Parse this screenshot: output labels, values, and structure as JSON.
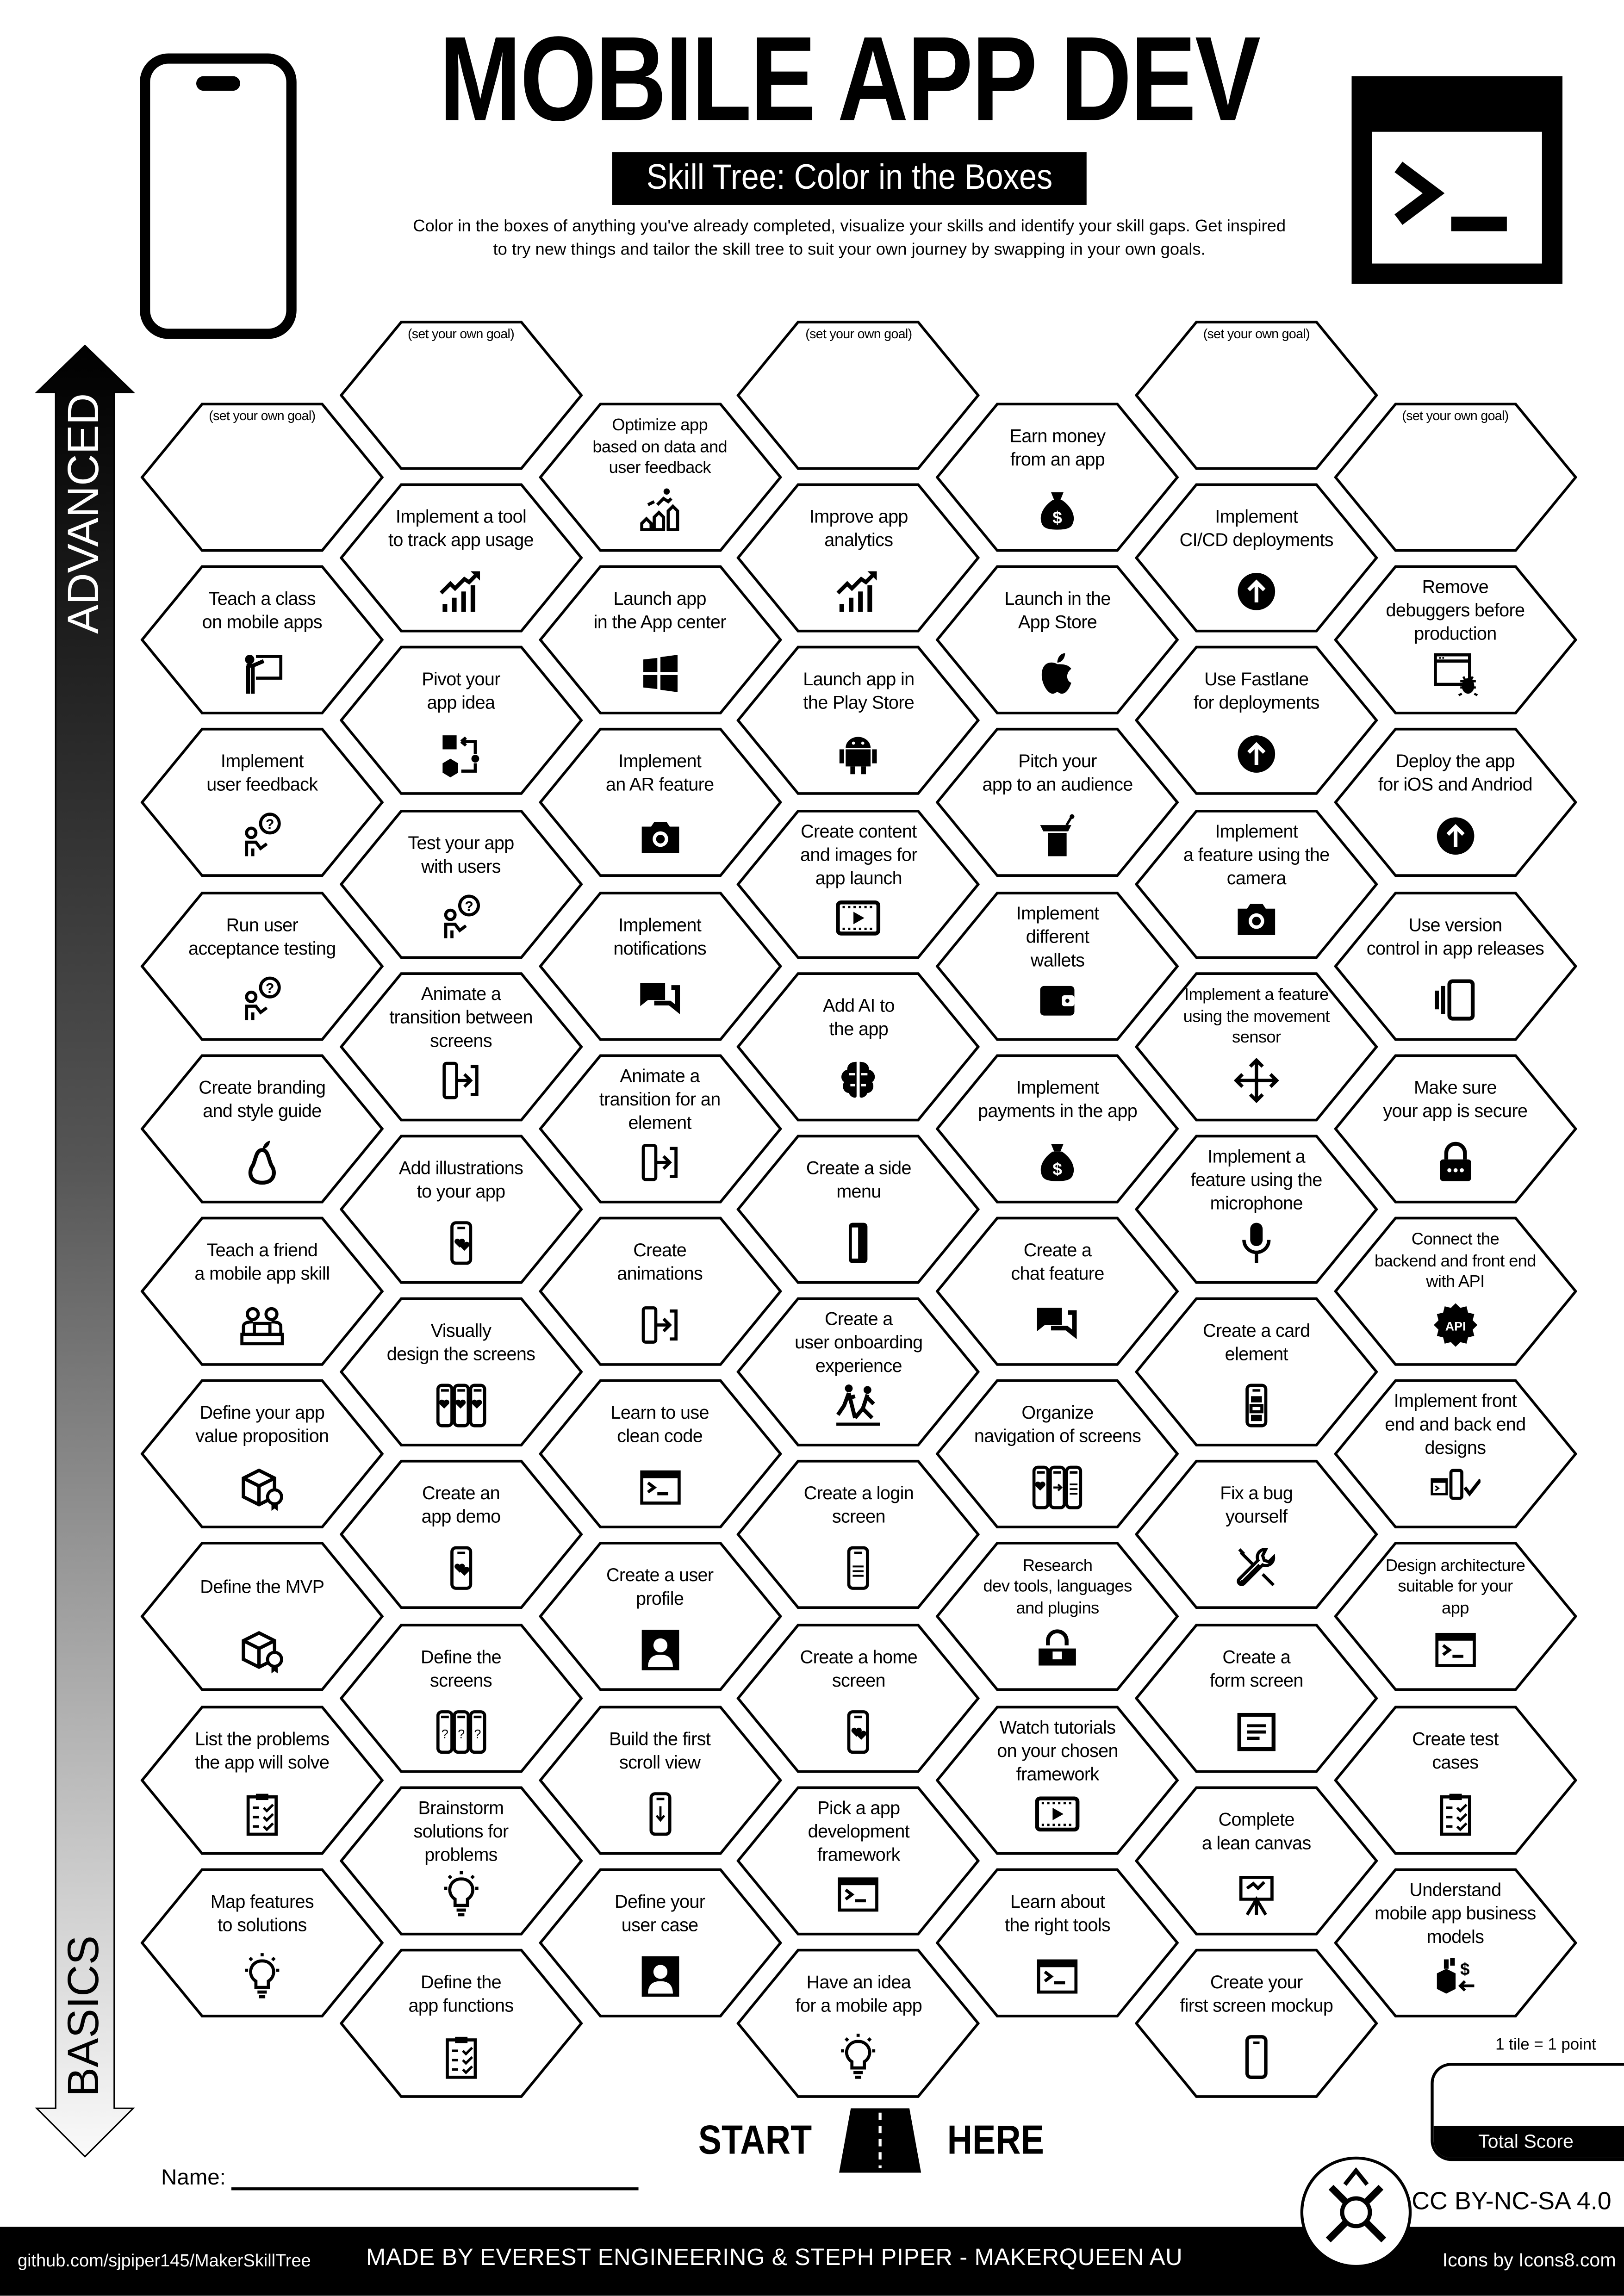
{
  "header": {
    "title": "MOBILE APP DEV",
    "subtitle": "Skill Tree: Color in the Boxes",
    "description": "Color in the boxes of anything you've already completed, visualize your skills and identify your skill gaps.  Get inspired\nto try new things and tailor the skill tree to suit your own journey by swapping in your own goals.",
    "left_icon": "smartphone-icon",
    "right_icon": "terminal-icon"
  },
  "axis": {
    "top_label": "ADVANCED",
    "bottom_label": "BASICS"
  },
  "columns": [
    {
      "hexes": [
        {
          "label": "(set your own goal)",
          "icon": null
        },
        {
          "label": "Teach a class\non mobile apps",
          "icon": "teacher"
        },
        {
          "label": "Implement\nuser feedback",
          "icon": "feedback"
        },
        {
          "label": "Run user\nacceptance testing",
          "icon": "feedback"
        },
        {
          "label": "Create branding\nand style guide",
          "icon": "pear"
        },
        {
          "label": "Teach a friend\na mobile app skill",
          "icon": "team"
        },
        {
          "label": "Define your app\nvalue proposition",
          "icon": "box-badge"
        },
        {
          "label": "Define the MVP",
          "icon": "box-badge"
        },
        {
          "label": "List the problems\nthe app will solve",
          "icon": "clipboard"
        },
        {
          "label": "Map features\nto solutions",
          "icon": "bulb"
        }
      ]
    },
    {
      "hexes": [
        {
          "label": "(set your own goal)",
          "icon": null
        },
        {
          "label": "Implement a tool\nto track app usage",
          "icon": "chart-up"
        },
        {
          "label": "Pivot your\napp idea",
          "icon": "pivot"
        },
        {
          "label": "Test your app\nwith users",
          "icon": "feedback"
        },
        {
          "label": "Animate a\ntransition between\nscreens",
          "icon": "transition"
        },
        {
          "label": "Add illustrations\nto your app",
          "icon": "phone-hearts"
        },
        {
          "label": "Visually\ndesign the screens",
          "icon": "phones-hearts"
        },
        {
          "label": "Create an\napp demo",
          "icon": "phone-hearts"
        },
        {
          "label": "Define the\nscreens",
          "icon": "phones-question"
        },
        {
          "label": "Brainstorm\nsolutions for\nproblems",
          "icon": "bulb"
        },
        {
          "label": "Define the\napp functions",
          "icon": "clipboard"
        }
      ]
    },
    {
      "hexes": [
        {
          "label": "Optimize app\nbased on data and\nuser feedback",
          "icon": "growth"
        },
        {
          "label": "Launch app\nin the App center",
          "icon": "windows"
        },
        {
          "label": "Implement\nan AR feature",
          "icon": "camera"
        },
        {
          "label": "Implement\nnotifications",
          "icon": "chat"
        },
        {
          "label": "Animate a\ntransition for an\nelement",
          "icon": "transition"
        },
        {
          "label": "Create\nanimations",
          "icon": "transition"
        },
        {
          "label": "Learn to use\nclean code",
          "icon": "terminal"
        },
        {
          "label": "Create a user\nprofile",
          "icon": "user-profile"
        },
        {
          "label": "Build the first\nscroll view",
          "icon": "phone-scroll"
        },
        {
          "label": "Define your\nuser case",
          "icon": "user-profile"
        }
      ]
    },
    {
      "hexes": [
        {
          "label": "(set your own goal)",
          "icon": null
        },
        {
          "label": "Improve app\nanalytics",
          "icon": "chart-up"
        },
        {
          "label": "Launch app in\nthe Play Store",
          "icon": "android"
        },
        {
          "label": "Create content\nand images for\napp launch",
          "icon": "film-play"
        },
        {
          "label": "Add AI to\nthe app",
          "icon": "brain"
        },
        {
          "label": "Create a side\nmenu",
          "icon": "phone-side"
        },
        {
          "label": "Create a\nuser onboarding\nexperience",
          "icon": "onboarding"
        },
        {
          "label": "Create a login\nscreen",
          "icon": "phone-login"
        },
        {
          "label": "Create a home\nscreen",
          "icon": "phone-hearts"
        },
        {
          "label": "Pick a app\ndevelopment\nframework",
          "icon": "terminal"
        },
        {
          "label": "Have an idea\nfor a mobile app",
          "icon": "bulb"
        }
      ]
    },
    {
      "hexes": [
        {
          "label": "Earn money\nfrom an app",
          "icon": "money-bag"
        },
        {
          "label": "Launch in the\nApp Store",
          "icon": "apple"
        },
        {
          "label": "Pitch your\napp to an audience",
          "icon": "podium"
        },
        {
          "label": "Implement\ndifferent\nwallets",
          "icon": "wallet"
        },
        {
          "label": "Implement\npayments in the app",
          "icon": "money-bag"
        },
        {
          "label": "Create a\nchat feature",
          "icon": "chat"
        },
        {
          "label": "Organize\nnavigation of screens",
          "icon": "nav-phones"
        },
        {
          "label": "Research\ndev tools, languages\nand plugins",
          "icon": "toolbox"
        },
        {
          "label": "Watch tutorials\non your chosen\nframework",
          "icon": "film-play"
        },
        {
          "label": "Learn about\nthe right tools",
          "icon": "terminal"
        }
      ]
    },
    {
      "hexes": [
        {
          "label": "(set your own goal)",
          "icon": null
        },
        {
          "label": "Implement\nCI/CD deployments",
          "icon": "circle-up"
        },
        {
          "label": "Use Fastlane\nfor deployments",
          "icon": "circle-up"
        },
        {
          "label": "Implement\na feature using the\ncamera",
          "icon": "camera"
        },
        {
          "label": "Implement a feature\nusing the movement\nsensor",
          "icon": "move"
        },
        {
          "label": "Implement a\nfeature using the\nmicrophone",
          "icon": "mic"
        },
        {
          "label": "Create a card\nelement",
          "icon": "phone-card"
        },
        {
          "label": "Fix a bug\nyourself",
          "icon": "wrench"
        },
        {
          "label": "Create a\nform screen",
          "icon": "form"
        },
        {
          "label": "Complete\na lean canvas",
          "icon": "easel"
        },
        {
          "label": "Create your\nfirst screen mockup",
          "icon": "phone-outline"
        }
      ]
    },
    {
      "hexes": [
        {
          "label": "(set your own goal)",
          "icon": null
        },
        {
          "label": "Remove\ndebuggers before\nproduction",
          "icon": "debug"
        },
        {
          "label": "Deploy the app\nfor iOS and Andriod",
          "icon": "circle-up"
        },
        {
          "label": "Use version\ncontrol in app releases",
          "icon": "version"
        },
        {
          "label": "Make sure\nyour app is secure",
          "icon": "lock"
        },
        {
          "label": "Connect the\nbackend and front end\nwith API",
          "icon": "api"
        },
        {
          "label": "Implement front\nend and back end\ndesigns",
          "icon": "front-back"
        },
        {
          "label": "Design architecture\nsuitable for your\napp",
          "icon": "terminal"
        },
        {
          "label": "Create test\ncases",
          "icon": "clipboard"
        },
        {
          "label": "Understand\nmobile app business\nmodels",
          "icon": "business"
        }
      ]
    }
  ],
  "start": {
    "left": "START",
    "right": "HERE",
    "icon": "road-icon"
  },
  "name_label": "Name:",
  "score": {
    "note": "1 tile = 1 point",
    "label": "Total Score"
  },
  "license": "CC BY-NC-SA 4.0",
  "footer": {
    "github": "github.com/sjpiper145/MakerSkillTree",
    "made_by": "MADE BY EVEREST ENGINEERING & STEPH PIPER  -  MAKERQUEEN AU",
    "icons_credit": "Icons by Icons8.com"
  }
}
